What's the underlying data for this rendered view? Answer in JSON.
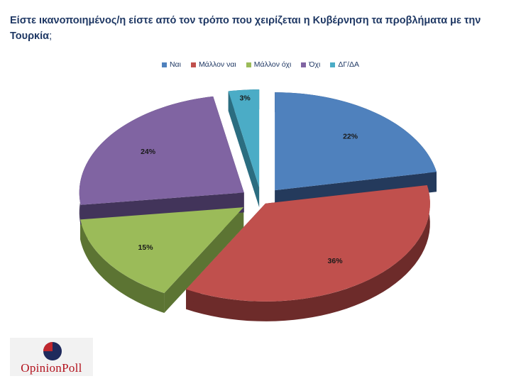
{
  "title": {
    "text": "Είστε ικανοποιημένος/η είστε από τον τρόπο που χειρίζεται η Κυβέρνηση τα προβλήματα με την Τουρκία",
    "punct": ";"
  },
  "logo": {
    "brand": "OpinionPoll",
    "part1": "Opinion",
    "part2": "Poll"
  },
  "chart_data": {
    "type": "pie",
    "title": "Είστε ικανοποιημένος/η είστε από τον τρόπο που χειρίζεται η Κυβέρνηση τα προβλήματα με την Τουρκία;",
    "categories": [
      "Ναι",
      "Μάλλον ναι",
      "Μάλλον όχι",
      "Όχι",
      "ΔΓ/ΔΑ"
    ],
    "values": [
      22,
      36,
      15,
      24,
      3
    ],
    "labels": [
      "22%",
      "36%",
      "15%",
      "24%",
      "3%"
    ],
    "colors": [
      "#4f81bd",
      "#c0504d",
      "#9bbb59",
      "#8064a2",
      "#4bacc6"
    ],
    "side_colors": [
      "#243a5c",
      "#6d2b2a",
      "#5c7433",
      "#42345a",
      "#2b6d80"
    ],
    "legend_position": "top",
    "style": "3d-exploded"
  }
}
